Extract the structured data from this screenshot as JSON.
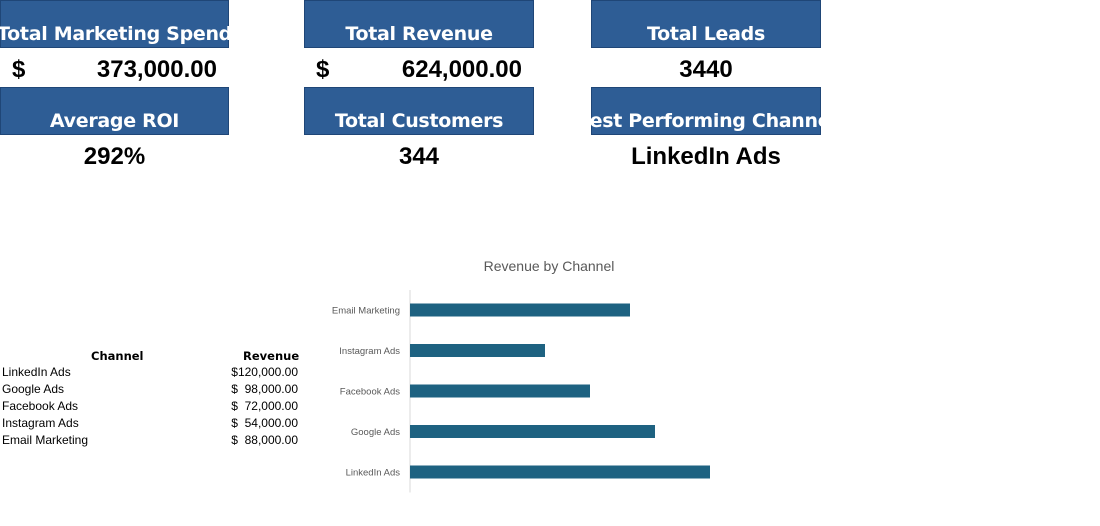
{
  "kpis": {
    "total_marketing_spend": {
      "label": "Total Marketing Spend",
      "currency": "$",
      "value": "373,000.00"
    },
    "total_revenue": {
      "label": "Total Revenue",
      "currency": "$",
      "value": "624,000.00"
    },
    "total_leads": {
      "label": "Total Leads",
      "value": "3440"
    },
    "average_roi": {
      "label": "Average ROI",
      "value": "292%"
    },
    "total_customers": {
      "label": "Total Customers",
      "value": "344"
    },
    "best_channel": {
      "label": "Best Performing Channel",
      "value": "LinkedIn Ads"
    }
  },
  "colors": {
    "header_bg": "#2e5d95",
    "bar": "#1e6281"
  },
  "table": {
    "headers": {
      "channel": "Channel",
      "revenue": "Revenue"
    },
    "rows": [
      {
        "channel": "LinkedIn Ads",
        "revenue": "$120,000.00"
      },
      {
        "channel": "Google Ads",
        "revenue": "$  98,000.00"
      },
      {
        "channel": "Facebook Ads",
        "revenue": "$  72,000.00"
      },
      {
        "channel": "Instagram Ads",
        "revenue": "$  54,000.00"
      },
      {
        "channel": "Email Marketing",
        "revenue": "$  88,000.00"
      }
    ]
  },
  "chart_data": {
    "type": "bar",
    "orientation": "horizontal",
    "title": "Revenue by Channel",
    "categories": [
      "Email Marketing",
      "Instagram Ads",
      "Facebook Ads",
      "Google Ads",
      "LinkedIn Ads"
    ],
    "values": [
      88000,
      54000,
      72000,
      98000,
      120000
    ],
    "xlim": [
      0,
      160000
    ],
    "grid": false,
    "legend": "none"
  }
}
